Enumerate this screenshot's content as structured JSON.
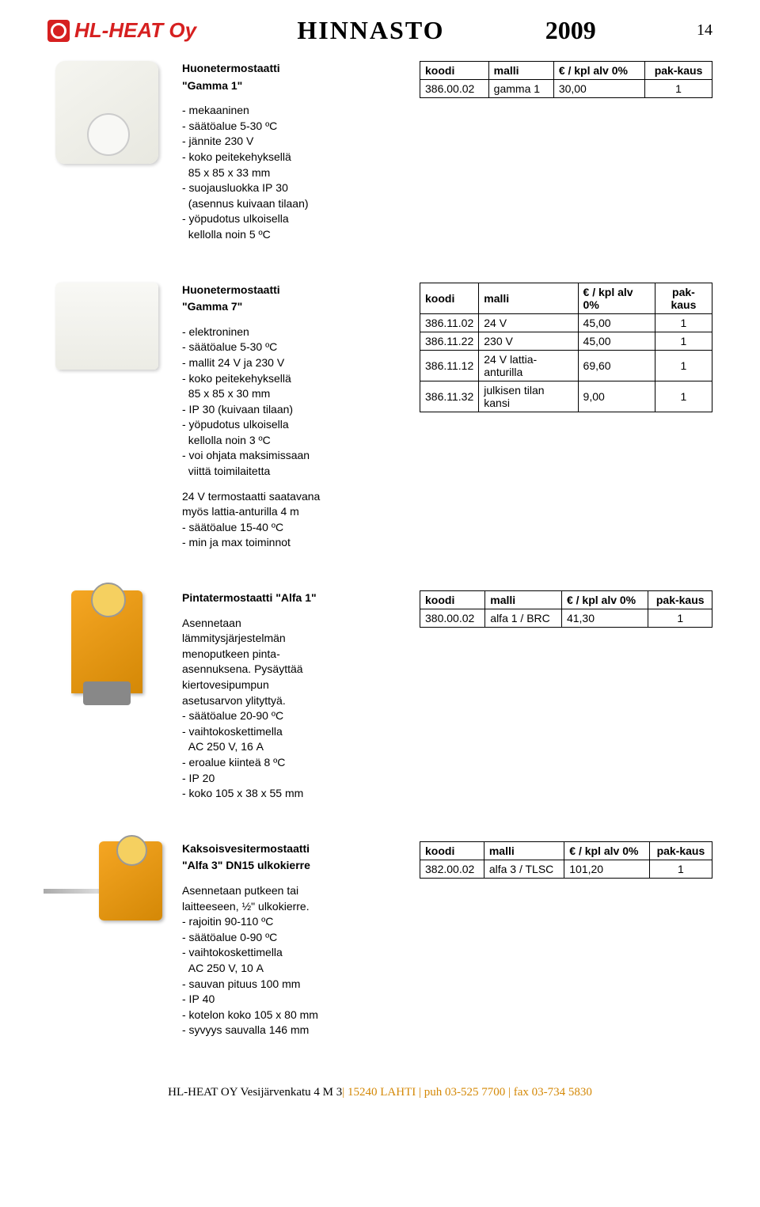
{
  "header": {
    "logo_text": "HL-HEAT Oy",
    "title": "HINNASTO",
    "year": "2009",
    "page_num": "14"
  },
  "tables": {
    "headers": {
      "koodi": "koodi",
      "malli": "malli",
      "price": "€ / kpl alv 0%",
      "pak": "pak-kaus"
    }
  },
  "gamma1": {
    "title": "Huonetermostaatti",
    "name": "\"Gamma 1\"",
    "bullets": [
      "- mekaaninen",
      "- säätöalue 5-30 ºC",
      "- jännite 230 V",
      "- koko peitekehyksellä",
      "  85 x 85 x 33 mm",
      "- suojausluokka IP 30",
      "  (asennus kuivaan tilaan)",
      "- yöpudotus ulkoisella",
      "  kellolla noin 5 ºC"
    ],
    "rows": [
      {
        "koodi": "386.00.02",
        "malli": "gamma 1",
        "price": "30,00",
        "pak": "1"
      }
    ]
  },
  "gamma7": {
    "title": "Huonetermostaatti",
    "name": "\"Gamma 7\"",
    "bullets": [
      "- elektroninen",
      "- säätöalue 5-30 ºC",
      "- mallit 24 V ja 230 V",
      "- koko peitekehyksellä",
      "  85 x 85 x 30 mm",
      "- IP 30 (kuivaan tilaan)",
      "- yöpudotus ulkoisella",
      "  kellolla noin 3 ºC",
      "- voi ohjata maksimissaan",
      "  viittä toimilaitetta"
    ],
    "extra": [
      "24 V termostaatti saatavana",
      "myös lattia-anturilla 4 m",
      "- säätöalue 15-40 ºC",
      "- min ja max toiminnot"
    ],
    "rows": [
      {
        "koodi": "386.11.02",
        "malli": "24 V",
        "price": "45,00",
        "pak": "1"
      },
      {
        "koodi": "386.11.22",
        "malli": "230 V",
        "price": "45,00",
        "pak": "1"
      },
      {
        "koodi": "386.11.12",
        "malli": "24 V lattia-anturilla",
        "price": "69,60",
        "pak": "1"
      },
      {
        "koodi": "386.11.32",
        "malli": "julkisen tilan kansi",
        "price": "9,00",
        "pak": "1"
      }
    ]
  },
  "alfa1": {
    "title": "Pintatermostaatti \"Alfa 1\"",
    "desc": [
      "Asennetaan",
      "lämmitysjärjestelmän",
      "menoputkeen pinta-",
      "asennuksena. Pysäyttää",
      "kiertovesipumpun",
      "asetusarvon ylityttyä.",
      "- säätöalue 20-90 ºC",
      "- vaihtokoskettimella",
      "  AC 250 V, 16 A",
      "- eroalue kiinteä 8 ºC",
      "- IP 20",
      "- koko 105 x 38 x 55 mm"
    ],
    "rows": [
      {
        "koodi": "380.00.02",
        "malli": "alfa 1 / BRC",
        "price": "41,30",
        "pak": "1"
      }
    ]
  },
  "alfa3": {
    "title": "Kaksoisvesitermostaatti",
    "name": "\"Alfa 3\" DN15 ulkokierre",
    "desc": [
      "Asennetaan putkeen tai",
      "laitteeseen, ½\" ulkokierre.",
      "- rajoitin 90-110 ºC",
      "- säätöalue 0-90 ºC",
      "- vaihtokoskettimella",
      "  AC 250 V, 10 A",
      "- sauvan pituus 100 mm",
      "- IP 40",
      "- kotelon koko 105 x 80 mm",
      "- syvyys sauvalla 146 mm"
    ],
    "rows": [
      {
        "koodi": "382.00.02",
        "malli": "alfa 3 / TLSC",
        "price": "101,20",
        "pak": "1"
      }
    ]
  },
  "footer": {
    "company": "HL-HEAT OY Vesijärvenkatu 4 M 3",
    "address": "| 15240 LAHTI | puh 03-525 7700 | fax 03-734 5830"
  }
}
